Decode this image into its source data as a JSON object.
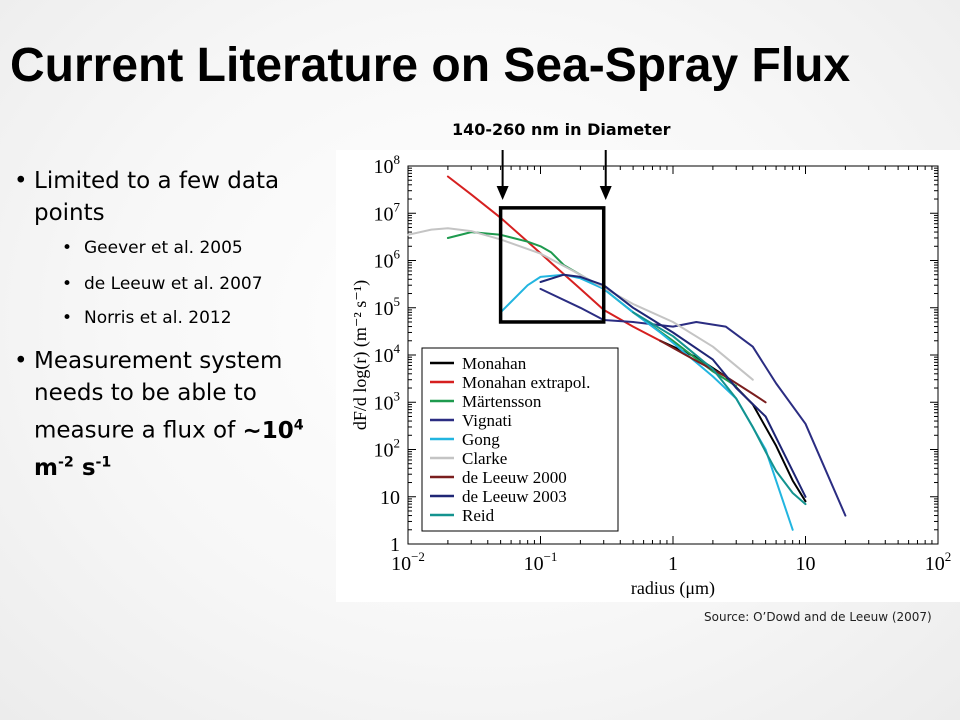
{
  "slide": {
    "title": "Current Literature on Sea-Spray Flux",
    "bullets": [
      {
        "text": "Limited to a few data points",
        "sub": [
          "Geever et al. 2005",
          "de Leeuw et al. 2007",
          "Norris et al. 2012"
        ]
      },
      {
        "text": "Measurement system needs to be able to measure a flux of"
      }
    ],
    "flux": {
      "prefix": "~10",
      "exp": "4",
      "unit_m": " m",
      "exp_m": "-2",
      "unit_s": " s",
      "exp_s": "-1"
    },
    "annotation": "140-260 nm in Diameter",
    "source": "Source: O’Dowd and de Leeuw (2007)"
  },
  "chart_data": {
    "type": "line",
    "xscale": "log",
    "yscale": "log",
    "xlim": [
      0.01,
      100
    ],
    "ylim": [
      1,
      100000000
    ],
    "xlabel": "radius (μm)",
    "ylabel": "dF/d log(r) (m⁻² s⁻¹)",
    "x_ticks": [
      {
        "base": "10",
        "exp": "−2"
      },
      {
        "base": "10",
        "exp": "−1"
      },
      {
        "base": "1",
        "exp": ""
      },
      {
        "base": "10",
        "exp": ""
      },
      {
        "base": "10",
        "exp": "2"
      }
    ],
    "y_ticks": [
      {
        "base": "1",
        "exp": ""
      },
      {
        "base": "10",
        "exp": ""
      },
      {
        "base": "10",
        "exp": "2"
      },
      {
        "base": "10",
        "exp": "3"
      },
      {
        "base": "10",
        "exp": "4"
      },
      {
        "base": "10",
        "exp": "5"
      },
      {
        "base": "10",
        "exp": "6"
      },
      {
        "base": "10",
        "exp": "7"
      },
      {
        "base": "10",
        "exp": "8"
      }
    ],
    "legend_position": "bottom-left",
    "highlight_box": {
      "x": [
        0.05,
        0.3
      ],
      "y": [
        50000,
        13000000
      ]
    },
    "series": [
      {
        "name": "Monahan",
        "color": "#000000",
        "x": [
          0.8,
          1.5,
          2.5,
          4,
          6,
          8,
          10
        ],
        "y": [
          20000,
          9000,
          3500,
          900,
          120,
          22,
          8
        ]
      },
      {
        "name": "Monahan extrapol.",
        "color": "#d62020",
        "x": [
          0.02,
          0.03,
          0.05,
          0.08,
          0.12,
          0.2,
          0.3,
          0.5,
          0.8
        ],
        "y": [
          60000000,
          25000000,
          8000000,
          2500000,
          900000,
          250000,
          90000,
          40000,
          20000
        ]
      },
      {
        "name": "Märtensson",
        "color": "#1e9a4e",
        "x": [
          0.02,
          0.03,
          0.05,
          0.08,
          0.1,
          0.12,
          0.15,
          0.2,
          0.3,
          0.5,
          1,
          2,
          3
        ],
        "y": [
          3000000,
          4000000,
          3500000,
          2500000,
          2000000,
          1500000,
          800000,
          500000,
          250000,
          80000,
          20000,
          4500,
          2200
        ]
      },
      {
        "name": "Vignati",
        "color": "#2b2d82",
        "x": [
          0.1,
          0.2,
          0.3,
          0.5,
          1,
          1.5,
          2.5,
          4,
          6,
          10,
          20
        ],
        "y": [
          250000,
          100000,
          55000,
          50000,
          40000,
          50000,
          40000,
          15000,
          2500,
          350,
          4
        ]
      },
      {
        "name": "Gong",
        "color": "#22b5e0",
        "x": [
          0.05,
          0.08,
          0.1,
          0.15,
          0.2,
          0.3,
          0.5,
          0.8,
          1,
          2,
          3,
          5,
          8
        ],
        "y": [
          80000,
          300000,
          450000,
          500000,
          420000,
          250000,
          80000,
          30000,
          18000,
          3500,
          1200,
          100,
          2
        ]
      },
      {
        "name": "Clarke",
        "color": "#c4c4c4",
        "x": [
          0.01,
          0.015,
          0.02,
          0.03,
          0.05,
          0.1,
          0.2,
          0.5,
          1,
          2,
          4
        ],
        "y": [
          3500000,
          4500000,
          4800000,
          4200000,
          2800000,
          1400000,
          500000,
          120000,
          50000,
          15000,
          3000
        ]
      },
      {
        "name": "de Leeuw 2000",
        "color": "#7a1e1e",
        "x": [
          0.8,
          1.5,
          2.5,
          4,
          5
        ],
        "y": [
          20000,
          7500,
          3500,
          1500,
          1000
        ]
      },
      {
        "name": "de Leeuw 2003",
        "color": "#1f2675",
        "x": [
          0.1,
          0.15,
          0.2,
          0.3,
          0.5,
          1,
          2,
          3,
          5,
          10
        ],
        "y": [
          350000,
          500000,
          450000,
          300000,
          100000,
          30000,
          8000,
          2000,
          500,
          10
        ]
      },
      {
        "name": "Reid",
        "color": "#14938f",
        "x": [
          0.5,
          1,
          2,
          3,
          4,
          5,
          6,
          8,
          10
        ],
        "y": [
          80000,
          25000,
          5000,
          1200,
          300,
          90,
          35,
          12,
          7
        ]
      }
    ]
  }
}
